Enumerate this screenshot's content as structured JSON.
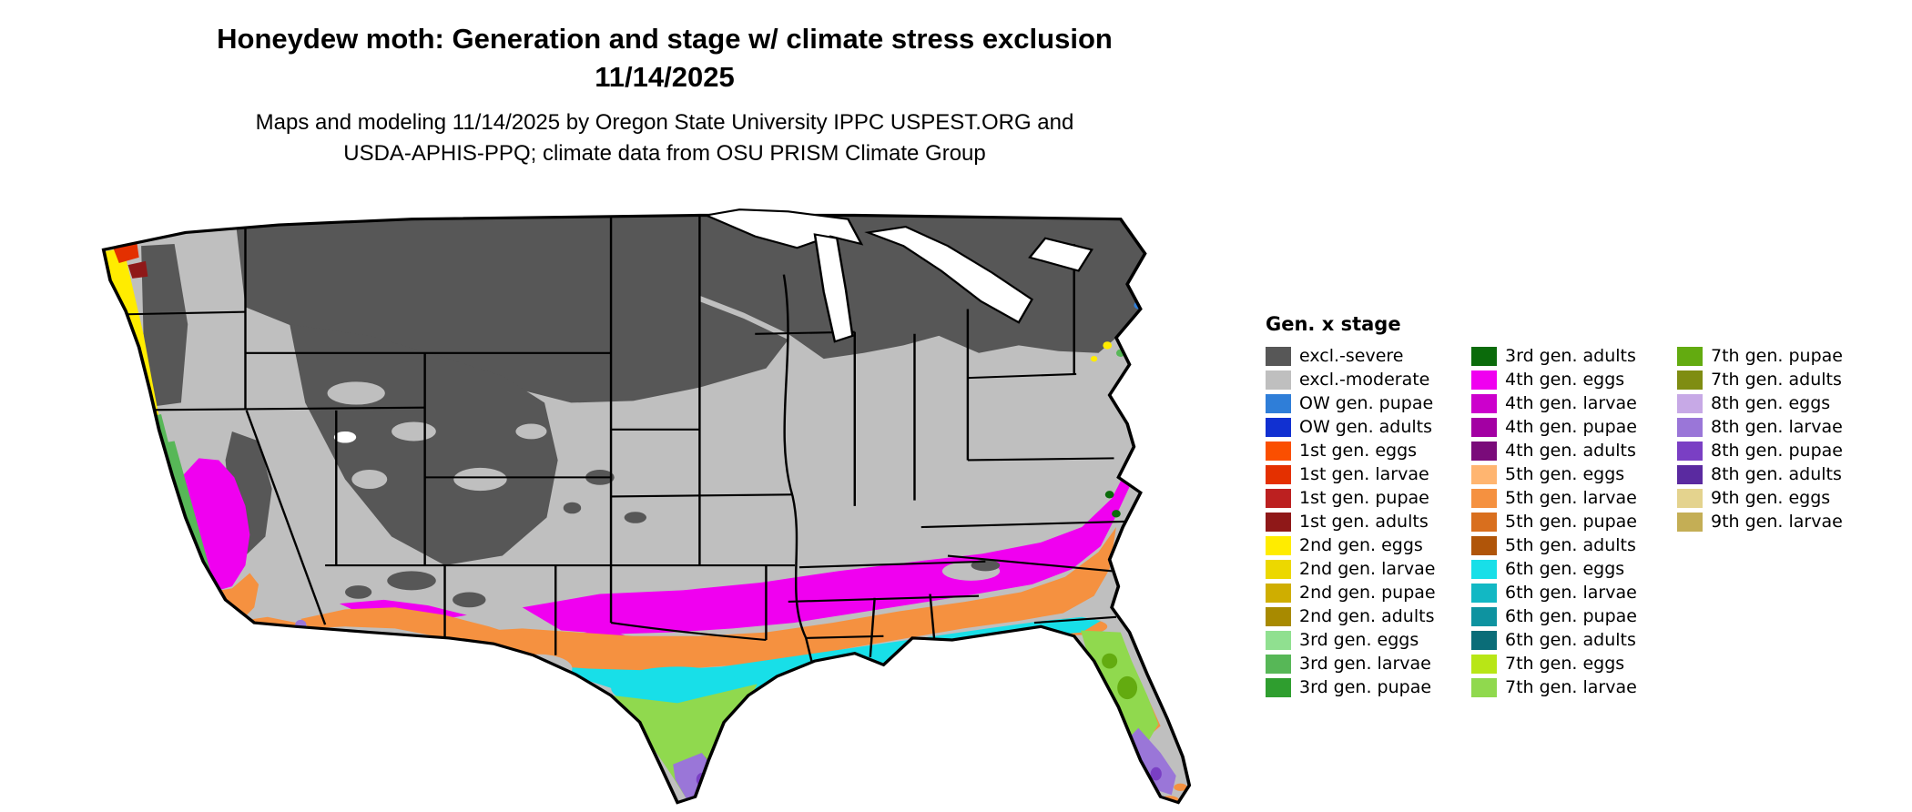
{
  "title": {
    "line1": "Honeydew moth: Generation and stage w/ climate stress exclusion",
    "line2": "11/14/2025"
  },
  "subtitle": {
    "line1": "Maps and modeling 11/14/2025 by Oregon State University IPPC USPEST.ORG and",
    "line2": "USDA-APHIS-PPQ; climate data from OSU PRISM Climate Group"
  },
  "map": {
    "region": "Continental United States",
    "border_color": "#000000",
    "water_color": "#ffffff"
  },
  "legend": {
    "title": "Gen. x stage",
    "columns": [
      [
        {
          "label": "excl.-severe",
          "color": "#575757"
        },
        {
          "label": "excl.-moderate",
          "color": "#bfbfbf"
        },
        {
          "label": "OW gen. pupae",
          "color": "#2f7ed8"
        },
        {
          "label": "OW gen. adults",
          "color": "#1130d1"
        },
        {
          "label": "1st gen. eggs",
          "color": "#fa4f00"
        },
        {
          "label": "1st gen. larvae",
          "color": "#e43000"
        },
        {
          "label": "1st gen. pupae",
          "color": "#bc2020"
        },
        {
          "label": "1st gen. adults",
          "color": "#8f1818"
        },
        {
          "label": "2nd gen. eggs",
          "color": "#ffec00"
        },
        {
          "label": "2nd gen. larvae",
          "color": "#ecd800"
        },
        {
          "label": "2nd gen. pupae",
          "color": "#cfae00"
        },
        {
          "label": "2nd gen. adults",
          "color": "#a88a00"
        },
        {
          "label": "3rd gen. eggs",
          "color": "#90e090"
        },
        {
          "label": "3rd gen. larvae",
          "color": "#57b757"
        },
        {
          "label": "3rd gen. pupae",
          "color": "#2f9e2f"
        }
      ],
      [
        {
          "label": "3rd gen. adults",
          "color": "#0b6b0b"
        },
        {
          "label": "4th gen. eggs",
          "color": "#f000f0"
        },
        {
          "label": "4th gen. larvae",
          "color": "#cc00cc"
        },
        {
          "label": "4th gen. pupae",
          "color": "#a300a3"
        },
        {
          "label": "4th gen. adults",
          "color": "#7a0b7a"
        },
        {
          "label": "5th gen. eggs",
          "color": "#ffb570"
        },
        {
          "label": "5th gen. larvae",
          "color": "#f59140"
        },
        {
          "label": "5th gen. pupae",
          "color": "#d96f1e"
        },
        {
          "label": "5th gen. adults",
          "color": "#b05509"
        },
        {
          "label": "6th gen. eggs",
          "color": "#18dfe8"
        },
        {
          "label": "6th gen. larvae",
          "color": "#12b8c4"
        },
        {
          "label": "6th gen. pupae",
          "color": "#0e93a0"
        },
        {
          "label": "6th gen. adults",
          "color": "#0a6d78"
        },
        {
          "label": "7th gen. eggs",
          "color": "#b8e616"
        },
        {
          "label": "7th gen. larvae",
          "color": "#90d94e"
        }
      ],
      [
        {
          "label": "7th gen. pupae",
          "color": "#63ab10"
        },
        {
          "label": "7th gen. adults",
          "color": "#7f8d12"
        },
        {
          "label": "8th gen. eggs",
          "color": "#c7a9e6"
        },
        {
          "label": "8th gen. larvae",
          "color": "#9a76d8"
        },
        {
          "label": "8th gen. pupae",
          "color": "#7a3fc4"
        },
        {
          "label": "8th gen. adults",
          "color": "#5a2aa0"
        },
        {
          "label": "9th gen. eggs",
          "color": "#e4d38e"
        },
        {
          "label": "9th gen. larvae",
          "color": "#c4ae55"
        }
      ]
    ]
  }
}
